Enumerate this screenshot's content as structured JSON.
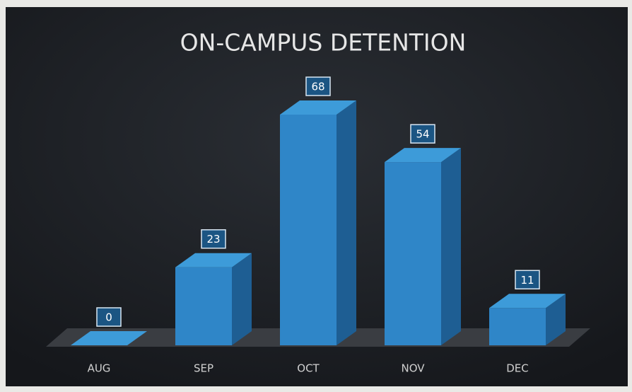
{
  "chart_data": {
    "type": "bar",
    "title": "ON-CAMPUS DETENTION",
    "categories": [
      "AUG",
      "SEP",
      "OCT",
      "NOV",
      "DEC"
    ],
    "values": [
      0,
      23,
      68,
      54,
      11
    ],
    "color": "#2f86c8"
  }
}
